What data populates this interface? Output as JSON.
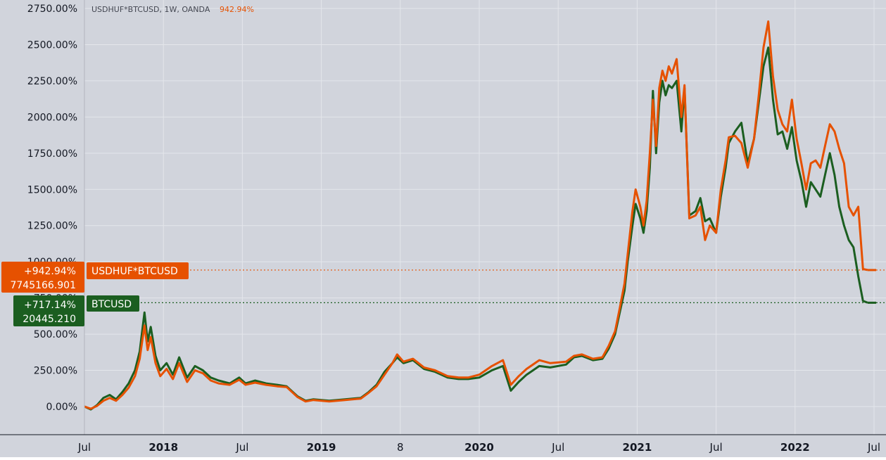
{
  "legend": {
    "symbol": "USDHUF*BTCUSD, 1W, OANDA",
    "value": "942.94%"
  },
  "colors": {
    "background": "#d1d4dc",
    "grid": "#e4e6eb",
    "axis_text": "#131722",
    "btc": "#1b5e20",
    "huf": "#e65100"
  },
  "chart_data": {
    "type": "line",
    "x_start": "2017-07",
    "x_end": "2022-07",
    "x_tick_labels": [
      "Jul",
      "2018",
      "Jul",
      "2019",
      "8",
      "2020",
      "Jul",
      "2021",
      "Jul",
      "2022",
      "Jul"
    ],
    "y_tick_labels": [
      "0.00%",
      "250.00%",
      "500.00%",
      "750.00%",
      "1000.00%",
      "1250.00%",
      "1500.00%",
      "1750.00%",
      "2000.00%",
      "2250.00%",
      "2500.00%",
      "2750.00%"
    ],
    "ylim": [
      -80,
      2780
    ],
    "grid": true,
    "series": [
      {
        "name": "BTCUSD",
        "label_pct": "+717.14%",
        "label_price": "20445.210",
        "last_value": 717.14,
        "points": [
          [
            2017.5,
            0
          ],
          [
            2017.54,
            -20
          ],
          [
            2017.58,
            10
          ],
          [
            2017.62,
            60
          ],
          [
            2017.66,
            80
          ],
          [
            2017.7,
            50
          ],
          [
            2017.74,
            100
          ],
          [
            2017.78,
            160
          ],
          [
            2017.82,
            250
          ],
          [
            2017.85,
            380
          ],
          [
            2017.88,
            650
          ],
          [
            2017.9,
            450
          ],
          [
            2017.92,
            550
          ],
          [
            2017.95,
            350
          ],
          [
            2017.98,
            250
          ],
          [
            2018.02,
            300
          ],
          [
            2018.06,
            220
          ],
          [
            2018.1,
            340
          ],
          [
            2018.15,
            200
          ],
          [
            2018.2,
            280
          ],
          [
            2018.25,
            250
          ],
          [
            2018.3,
            200
          ],
          [
            2018.35,
            180
          ],
          [
            2018.42,
            160
          ],
          [
            2018.48,
            200
          ],
          [
            2018.52,
            160
          ],
          [
            2018.58,
            180
          ],
          [
            2018.65,
            160
          ],
          [
            2018.72,
            150
          ],
          [
            2018.78,
            140
          ],
          [
            2018.85,
            70
          ],
          [
            2018.9,
            40
          ],
          [
            2018.95,
            50
          ],
          [
            2019.05,
            40
          ],
          [
            2019.15,
            50
          ],
          [
            2019.25,
            60
          ],
          [
            2019.3,
            100
          ],
          [
            2019.35,
            150
          ],
          [
            2019.4,
            240
          ],
          [
            2019.45,
            300
          ],
          [
            2019.48,
            340
          ],
          [
            2019.52,
            300
          ],
          [
            2019.58,
            320
          ],
          [
            2019.65,
            260
          ],
          [
            2019.72,
            240
          ],
          [
            2019.8,
            200
          ],
          [
            2019.87,
            190
          ],
          [
            2019.93,
            190
          ],
          [
            2020.0,
            200
          ],
          [
            2020.08,
            250
          ],
          [
            2020.15,
            280
          ],
          [
            2020.2,
            110
          ],
          [
            2020.25,
            170
          ],
          [
            2020.3,
            220
          ],
          [
            2020.38,
            280
          ],
          [
            2020.45,
            270
          ],
          [
            2020.55,
            290
          ],
          [
            2020.6,
            340
          ],
          [
            2020.65,
            350
          ],
          [
            2020.72,
            320
          ],
          [
            2020.78,
            330
          ],
          [
            2020.82,
            400
          ],
          [
            2020.86,
            500
          ],
          [
            2020.89,
            650
          ],
          [
            2020.92,
            800
          ],
          [
            2020.94,
            1000
          ],
          [
            2020.97,
            1250
          ],
          [
            2020.99,
            1400
          ],
          [
            2021.02,
            1300
          ],
          [
            2021.04,
            1200
          ],
          [
            2021.06,
            1350
          ],
          [
            2021.08,
            1650
          ],
          [
            2021.1,
            2180
          ],
          [
            2021.12,
            1750
          ],
          [
            2021.14,
            2100
          ],
          [
            2021.16,
            2250
          ],
          [
            2021.18,
            2150
          ],
          [
            2021.2,
            2220
          ],
          [
            2021.22,
            2200
          ],
          [
            2021.25,
            2250
          ],
          [
            2021.28,
            1900
          ],
          [
            2021.3,
            2200
          ],
          [
            2021.33,
            1320
          ],
          [
            2021.37,
            1350
          ],
          [
            2021.4,
            1440
          ],
          [
            2021.43,
            1280
          ],
          [
            2021.46,
            1300
          ],
          [
            2021.5,
            1200
          ],
          [
            2021.53,
            1450
          ],
          [
            2021.56,
            1650
          ],
          [
            2021.58,
            1820
          ],
          [
            2021.62,
            1900
          ],
          [
            2021.66,
            1960
          ],
          [
            2021.7,
            1680
          ],
          [
            2021.74,
            1850
          ],
          [
            2021.77,
            2100
          ],
          [
            2021.8,
            2350
          ],
          [
            2021.83,
            2480
          ],
          [
            2021.86,
            2120
          ],
          [
            2021.89,
            1880
          ],
          [
            2021.92,
            1900
          ],
          [
            2021.95,
            1780
          ],
          [
            2021.98,
            1930
          ],
          [
            2022.01,
            1700
          ],
          [
            2022.04,
            1560
          ],
          [
            2022.07,
            1380
          ],
          [
            2022.1,
            1550
          ],
          [
            2022.13,
            1500
          ],
          [
            2022.16,
            1450
          ],
          [
            2022.19,
            1600
          ],
          [
            2022.22,
            1750
          ],
          [
            2022.25,
            1600
          ],
          [
            2022.28,
            1380
          ],
          [
            2022.31,
            1250
          ],
          [
            2022.34,
            1150
          ],
          [
            2022.37,
            1100
          ],
          [
            2022.4,
            900
          ],
          [
            2022.43,
            730
          ],
          [
            2022.46,
            717.14
          ]
        ]
      },
      {
        "name": "USDHUF*BTCUSD",
        "label_pct": "+942.94%",
        "label_price": "7745166.901",
        "last_value": 942.94,
        "points": [
          [
            2017.5,
            0
          ],
          [
            2017.54,
            -15
          ],
          [
            2017.58,
            5
          ],
          [
            2017.62,
            40
          ],
          [
            2017.66,
            60
          ],
          [
            2017.7,
            40
          ],
          [
            2017.74,
            80
          ],
          [
            2017.78,
            130
          ],
          [
            2017.82,
            210
          ],
          [
            2017.85,
            330
          ],
          [
            2017.88,
            560
          ],
          [
            2017.9,
            390
          ],
          [
            2017.92,
            480
          ],
          [
            2017.95,
            300
          ],
          [
            2017.98,
            210
          ],
          [
            2018.02,
            260
          ],
          [
            2018.06,
            190
          ],
          [
            2018.1,
            300
          ],
          [
            2018.15,
            170
          ],
          [
            2018.2,
            250
          ],
          [
            2018.25,
            230
          ],
          [
            2018.3,
            180
          ],
          [
            2018.35,
            160
          ],
          [
            2018.42,
            150
          ],
          [
            2018.48,
            185
          ],
          [
            2018.52,
            150
          ],
          [
            2018.58,
            165
          ],
          [
            2018.65,
            150
          ],
          [
            2018.72,
            140
          ],
          [
            2018.78,
            135
          ],
          [
            2018.85,
            65
          ],
          [
            2018.9,
            35
          ],
          [
            2018.95,
            45
          ],
          [
            2019.05,
            35
          ],
          [
            2019.15,
            45
          ],
          [
            2019.25,
            55
          ],
          [
            2019.3,
            95
          ],
          [
            2019.35,
            140
          ],
          [
            2019.4,
            220
          ],
          [
            2019.45,
            300
          ],
          [
            2019.48,
            360
          ],
          [
            2019.52,
            310
          ],
          [
            2019.58,
            330
          ],
          [
            2019.65,
            270
          ],
          [
            2019.72,
            250
          ],
          [
            2019.8,
            210
          ],
          [
            2019.87,
            200
          ],
          [
            2019.93,
            200
          ],
          [
            2020.0,
            220
          ],
          [
            2020.08,
            280
          ],
          [
            2020.15,
            320
          ],
          [
            2020.2,
            150
          ],
          [
            2020.25,
            210
          ],
          [
            2020.3,
            260
          ],
          [
            2020.38,
            320
          ],
          [
            2020.45,
            300
          ],
          [
            2020.55,
            310
          ],
          [
            2020.6,
            350
          ],
          [
            2020.65,
            360
          ],
          [
            2020.72,
            330
          ],
          [
            2020.78,
            340
          ],
          [
            2020.82,
            420
          ],
          [
            2020.86,
            520
          ],
          [
            2020.89,
            680
          ],
          [
            2020.92,
            850
          ],
          [
            2020.94,
            1050
          ],
          [
            2020.97,
            1350
          ],
          [
            2020.99,
            1500
          ],
          [
            2021.02,
            1380
          ],
          [
            2021.04,
            1250
          ],
          [
            2021.06,
            1420
          ],
          [
            2021.08,
            1750
          ],
          [
            2021.1,
            2120
          ],
          [
            2021.12,
            1800
          ],
          [
            2021.14,
            2200
          ],
          [
            2021.16,
            2320
          ],
          [
            2021.18,
            2250
          ],
          [
            2021.2,
            2350
          ],
          [
            2021.22,
            2300
          ],
          [
            2021.25,
            2400
          ],
          [
            2021.28,
            2000
          ],
          [
            2021.3,
            2220
          ],
          [
            2021.33,
            1300
          ],
          [
            2021.37,
            1320
          ],
          [
            2021.4,
            1380
          ],
          [
            2021.43,
            1150
          ],
          [
            2021.46,
            1250
          ],
          [
            2021.5,
            1200
          ],
          [
            2021.53,
            1500
          ],
          [
            2021.56,
            1700
          ],
          [
            2021.58,
            1860
          ],
          [
            2021.62,
            1870
          ],
          [
            2021.66,
            1820
          ],
          [
            2021.7,
            1650
          ],
          [
            2021.74,
            1850
          ],
          [
            2021.77,
            2150
          ],
          [
            2021.8,
            2480
          ],
          [
            2021.83,
            2660
          ],
          [
            2021.86,
            2280
          ],
          [
            2021.89,
            2050
          ],
          [
            2021.92,
            1950
          ],
          [
            2021.95,
            1900
          ],
          [
            2021.98,
            2120
          ],
          [
            2022.01,
            1850
          ],
          [
            2022.04,
            1680
          ],
          [
            2022.07,
            1500
          ],
          [
            2022.1,
            1680
          ],
          [
            2022.13,
            1700
          ],
          [
            2022.16,
            1650
          ],
          [
            2022.19,
            1800
          ],
          [
            2022.22,
            1950
          ],
          [
            2022.25,
            1900
          ],
          [
            2022.28,
            1780
          ],
          [
            2022.31,
            1680
          ],
          [
            2022.34,
            1380
          ],
          [
            2022.37,
            1320
          ],
          [
            2022.4,
            1380
          ],
          [
            2022.43,
            950
          ],
          [
            2022.46,
            942.94
          ]
        ]
      }
    ]
  }
}
